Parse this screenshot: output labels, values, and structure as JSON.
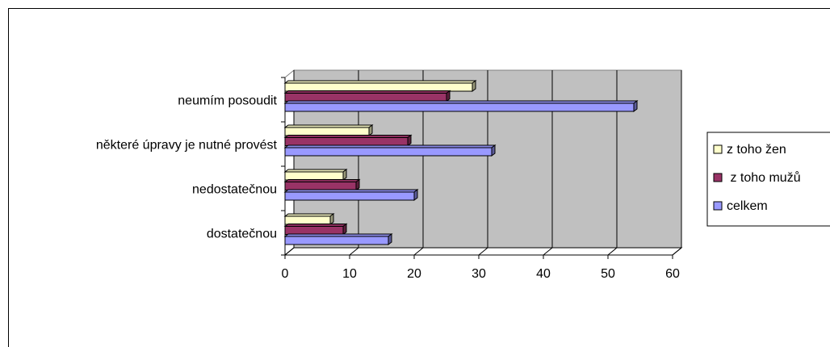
{
  "chart_data": {
    "type": "bar",
    "orientation": "horizontal",
    "style": "3d",
    "categories": [
      "dostatečnou",
      "nedostatečnou",
      "některé úpravy je nutné provést",
      "neumím posoudit"
    ],
    "series": [
      {
        "name": "celkem",
        "values": [
          16,
          20,
          32,
          54
        ],
        "color": "#9999FF"
      },
      {
        "name": " z toho mužů",
        "values": [
          9,
          11,
          19,
          25
        ],
        "color": "#993366"
      },
      {
        "name": "z toho žen",
        "values": [
          7,
          9,
          13,
          29
        ],
        "color": "#FFFFCC"
      }
    ],
    "xlim": [
      0,
      60
    ],
    "xticks": [
      0,
      10,
      20,
      30,
      40,
      50,
      60
    ],
    "grid": true,
    "legend": "right",
    "plot_background": "#C0C0C0",
    "title": "",
    "xlabel": "",
    "ylabel": ""
  }
}
